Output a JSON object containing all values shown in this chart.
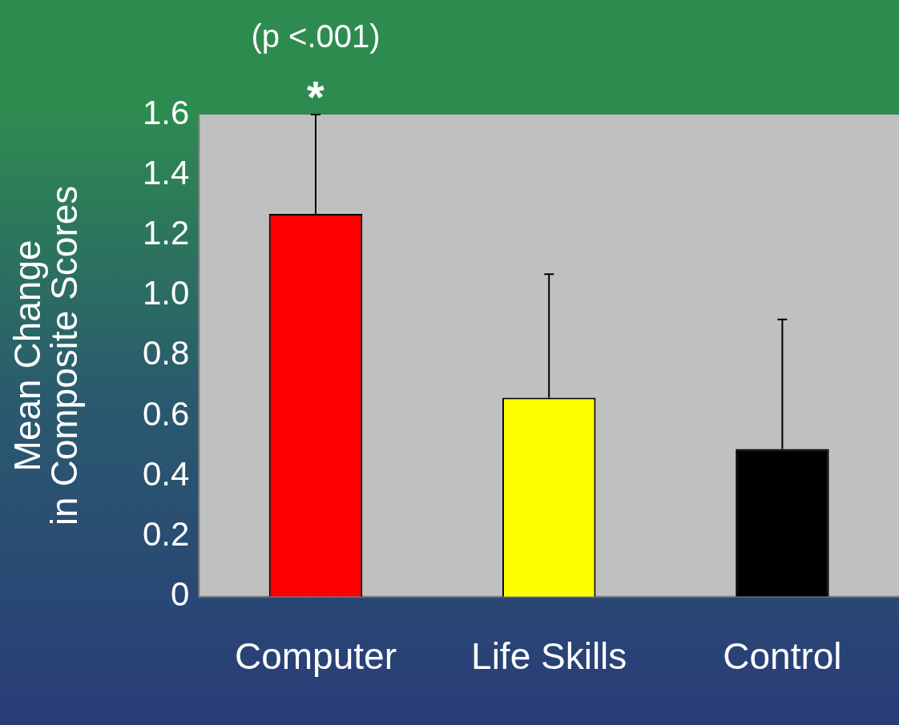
{
  "chart_data": {
    "type": "bar",
    "ylabel": "Mean Change\nin Composite Scores",
    "categories": [
      "Computer",
      "Life Skills",
      "Control"
    ],
    "values": [
      1.27,
      0.66,
      0.49
    ],
    "colors": [
      "#ff0000",
      "#ffff00",
      "#000000"
    ],
    "errors": [
      [
        1.27,
        1.6
      ],
      [
        0.66,
        1.07
      ],
      [
        0.49,
        0.92
      ]
    ],
    "ylim": [
      0,
      1.6
    ],
    "yticks": [
      0,
      0.2,
      0.4,
      0.6,
      0.8,
      {
        "value": 1,
        "label": "1.0"
      },
      1.2,
      1.4,
      1.6
    ],
    "grid": false,
    "legend": false,
    "annotations": [
      {
        "text": "*",
        "x": "Computer",
        "y": 1.6
      },
      {
        "text": "(p <.001)",
        "x": "Computer",
        "y": 1.6
      }
    ]
  }
}
